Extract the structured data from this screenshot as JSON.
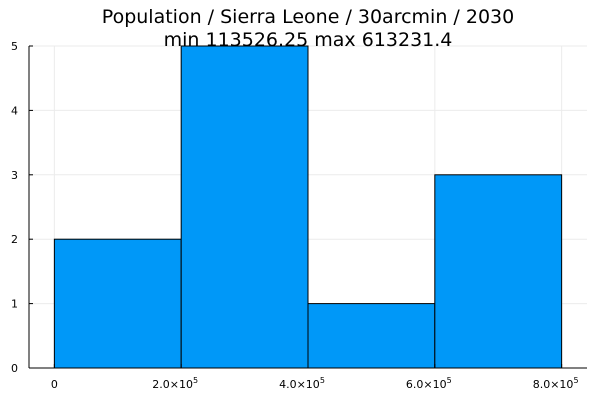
{
  "chart_data": {
    "type": "bar",
    "title": "Population / Sierra Leone / 30arcmin / 2030",
    "subtitle": "min 113526.25  max 613231.4",
    "bins": [
      {
        "x0": 0,
        "x1": 200000,
        "count": 2
      },
      {
        "x0": 200000,
        "x1": 400000,
        "count": 5
      },
      {
        "x0": 400000,
        "x1": 600000,
        "count": 1
      },
      {
        "x0": 600000,
        "x1": 800000,
        "count": 3
      }
    ],
    "xlim": [
      -40000,
      840000
    ],
    "ylim": [
      0,
      5
    ],
    "x_ticks": [
      {
        "value": 0,
        "base": "0",
        "exp": ""
      },
      {
        "value": 200000,
        "base": "2.0×10",
        "exp": "5"
      },
      {
        "value": 400000,
        "base": "4.0×10",
        "exp": "5"
      },
      {
        "value": 600000,
        "base": "6.0×10",
        "exp": "5"
      },
      {
        "value": 800000,
        "base": "8.0×10",
        "exp": "5"
      }
    ],
    "y_ticks": [
      {
        "value": 0,
        "label": "0"
      },
      {
        "value": 1,
        "label": "1"
      },
      {
        "value": 2,
        "label": "2"
      },
      {
        "value": 3,
        "label": "3"
      },
      {
        "value": 4,
        "label": "4"
      },
      {
        "value": 5,
        "label": "5"
      }
    ],
    "xlabel": "",
    "ylabel": "",
    "grid": true,
    "legend": "none",
    "bar_color": "#0098f8",
    "edge_color": "#000000"
  }
}
